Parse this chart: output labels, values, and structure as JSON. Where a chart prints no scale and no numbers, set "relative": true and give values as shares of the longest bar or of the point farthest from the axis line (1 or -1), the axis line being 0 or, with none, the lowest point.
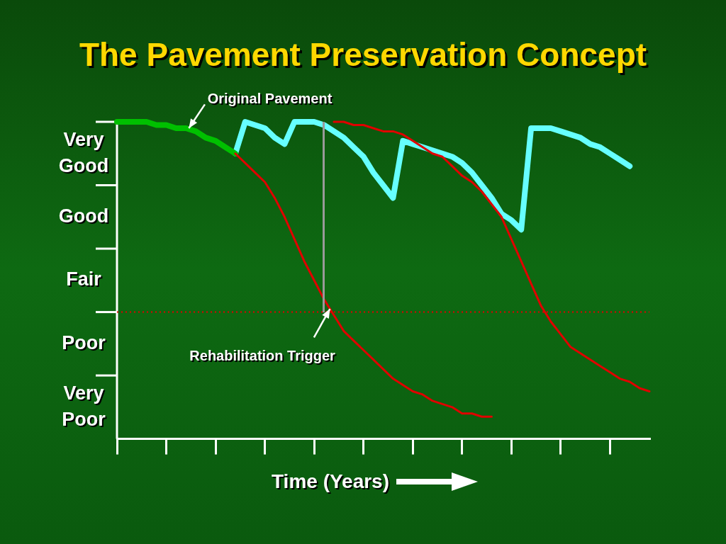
{
  "chart_data": {
    "type": "line",
    "title": "The Pavement Preservation Concept",
    "xlabel": "Time (Years)",
    "relative": true,
    "categories": [
      null,
      null,
      null,
      null,
      null,
      null,
      null,
      null,
      null,
      null,
      null,
      null,
      null,
      null,
      null,
      null,
      null,
      null,
      null,
      null,
      null,
      null,
      null,
      null,
      null,
      null,
      null,
      null,
      null,
      null,
      null,
      null,
      null,
      null,
      null,
      null,
      null,
      null,
      null,
      null,
      null,
      null,
      null,
      null,
      null,
      null,
      null,
      null,
      null,
      null,
      null,
      null,
      null,
      null,
      null
    ],
    "grid": false,
    "legend": false,
    "marker": "none",
    "line_style": "solid",
    "series": [
      {
        "color": "#e00000",
        "values": [
          null,
          null,
          null,
          null,
          null,
          null,
          null,
          null,
          null,
          null,
          null,
          null,
          0.9,
          0.87,
          0.84,
          0.81,
          0.76,
          0.7,
          0.63,
          0.56,
          0.5,
          0.44,
          0.39,
          0.34,
          0.31,
          0.28,
          0.25,
          0.22,
          0.19,
          0.17,
          0.15,
          0.14,
          0.12,
          0.11,
          0.1,
          0.08,
          0.08,
          0.07,
          0.07,
          null,
          null,
          null,
          null,
          null,
          null,
          null,
          null,
          null,
          null,
          null,
          null,
          null,
          null,
          null,
          null
        ]
      },
      {
        "color": "#e00000",
        "values": [
          null,
          null,
          null,
          null,
          null,
          null,
          null,
          null,
          null,
          null,
          null,
          null,
          null,
          null,
          null,
          null,
          null,
          null,
          null,
          null,
          null,
          null,
          1.0,
          1.0,
          0.99,
          0.99,
          0.98,
          0.97,
          0.97,
          0.96,
          0.94,
          0.92,
          0.9,
          0.89,
          0.86,
          0.83,
          0.81,
          0.78,
          0.74,
          0.7,
          0.63,
          0.56,
          0.49,
          0.42,
          0.37,
          0.33,
          0.29,
          0.27,
          0.25,
          0.23,
          0.21,
          0.19,
          0.18,
          0.16,
          0.15
        ]
      },
      {
        "color": "#00c000",
        "values": [
          1.0,
          1.0,
          1.0,
          1.0,
          0.99,
          0.99,
          0.98,
          0.98,
          0.97,
          0.95,
          0.94,
          0.92,
          0.9,
          null,
          null,
          null,
          null,
          null,
          null,
          null,
          null,
          null,
          null,
          null,
          null,
          null,
          null,
          null,
          null,
          null,
          null,
          null,
          null,
          null,
          null,
          null,
          null,
          null,
          null,
          null,
          null,
          null,
          null,
          null,
          null,
          null,
          null,
          null,
          null,
          null,
          null,
          null,
          null,
          null,
          null
        ]
      },
      {
        "color": "#66ffff",
        "values": [
          null,
          null,
          null,
          null,
          null,
          null,
          null,
          null,
          null,
          null,
          null,
          null,
          0.9,
          1.0,
          0.99,
          0.98,
          0.95,
          0.93,
          1.0,
          1.0,
          1.0,
          0.99,
          0.97,
          0.95,
          0.92,
          0.89,
          0.84,
          0.8,
          0.76,
          0.94,
          0.93,
          0.92,
          0.91,
          0.9,
          0.89,
          0.87,
          0.84,
          0.8,
          0.76,
          0.71,
          0.69,
          0.66,
          0.98,
          0.98,
          0.98,
          0.97,
          0.96,
          0.95,
          0.93,
          0.92,
          0.9,
          0.88,
          0.86,
          null,
          null
        ]
      }
    ],
    "ref_lines": [
      {
        "axis": "y",
        "value": 0.4,
        "color": "#e00000",
        "line_style": "dotted"
      }
    ],
    "annotations": [
      "Original Pavement",
      "Rehabilitation Trigger",
      "Very Good",
      "Good",
      "Fair",
      "Poor",
      "Very Poor"
    ]
  }
}
